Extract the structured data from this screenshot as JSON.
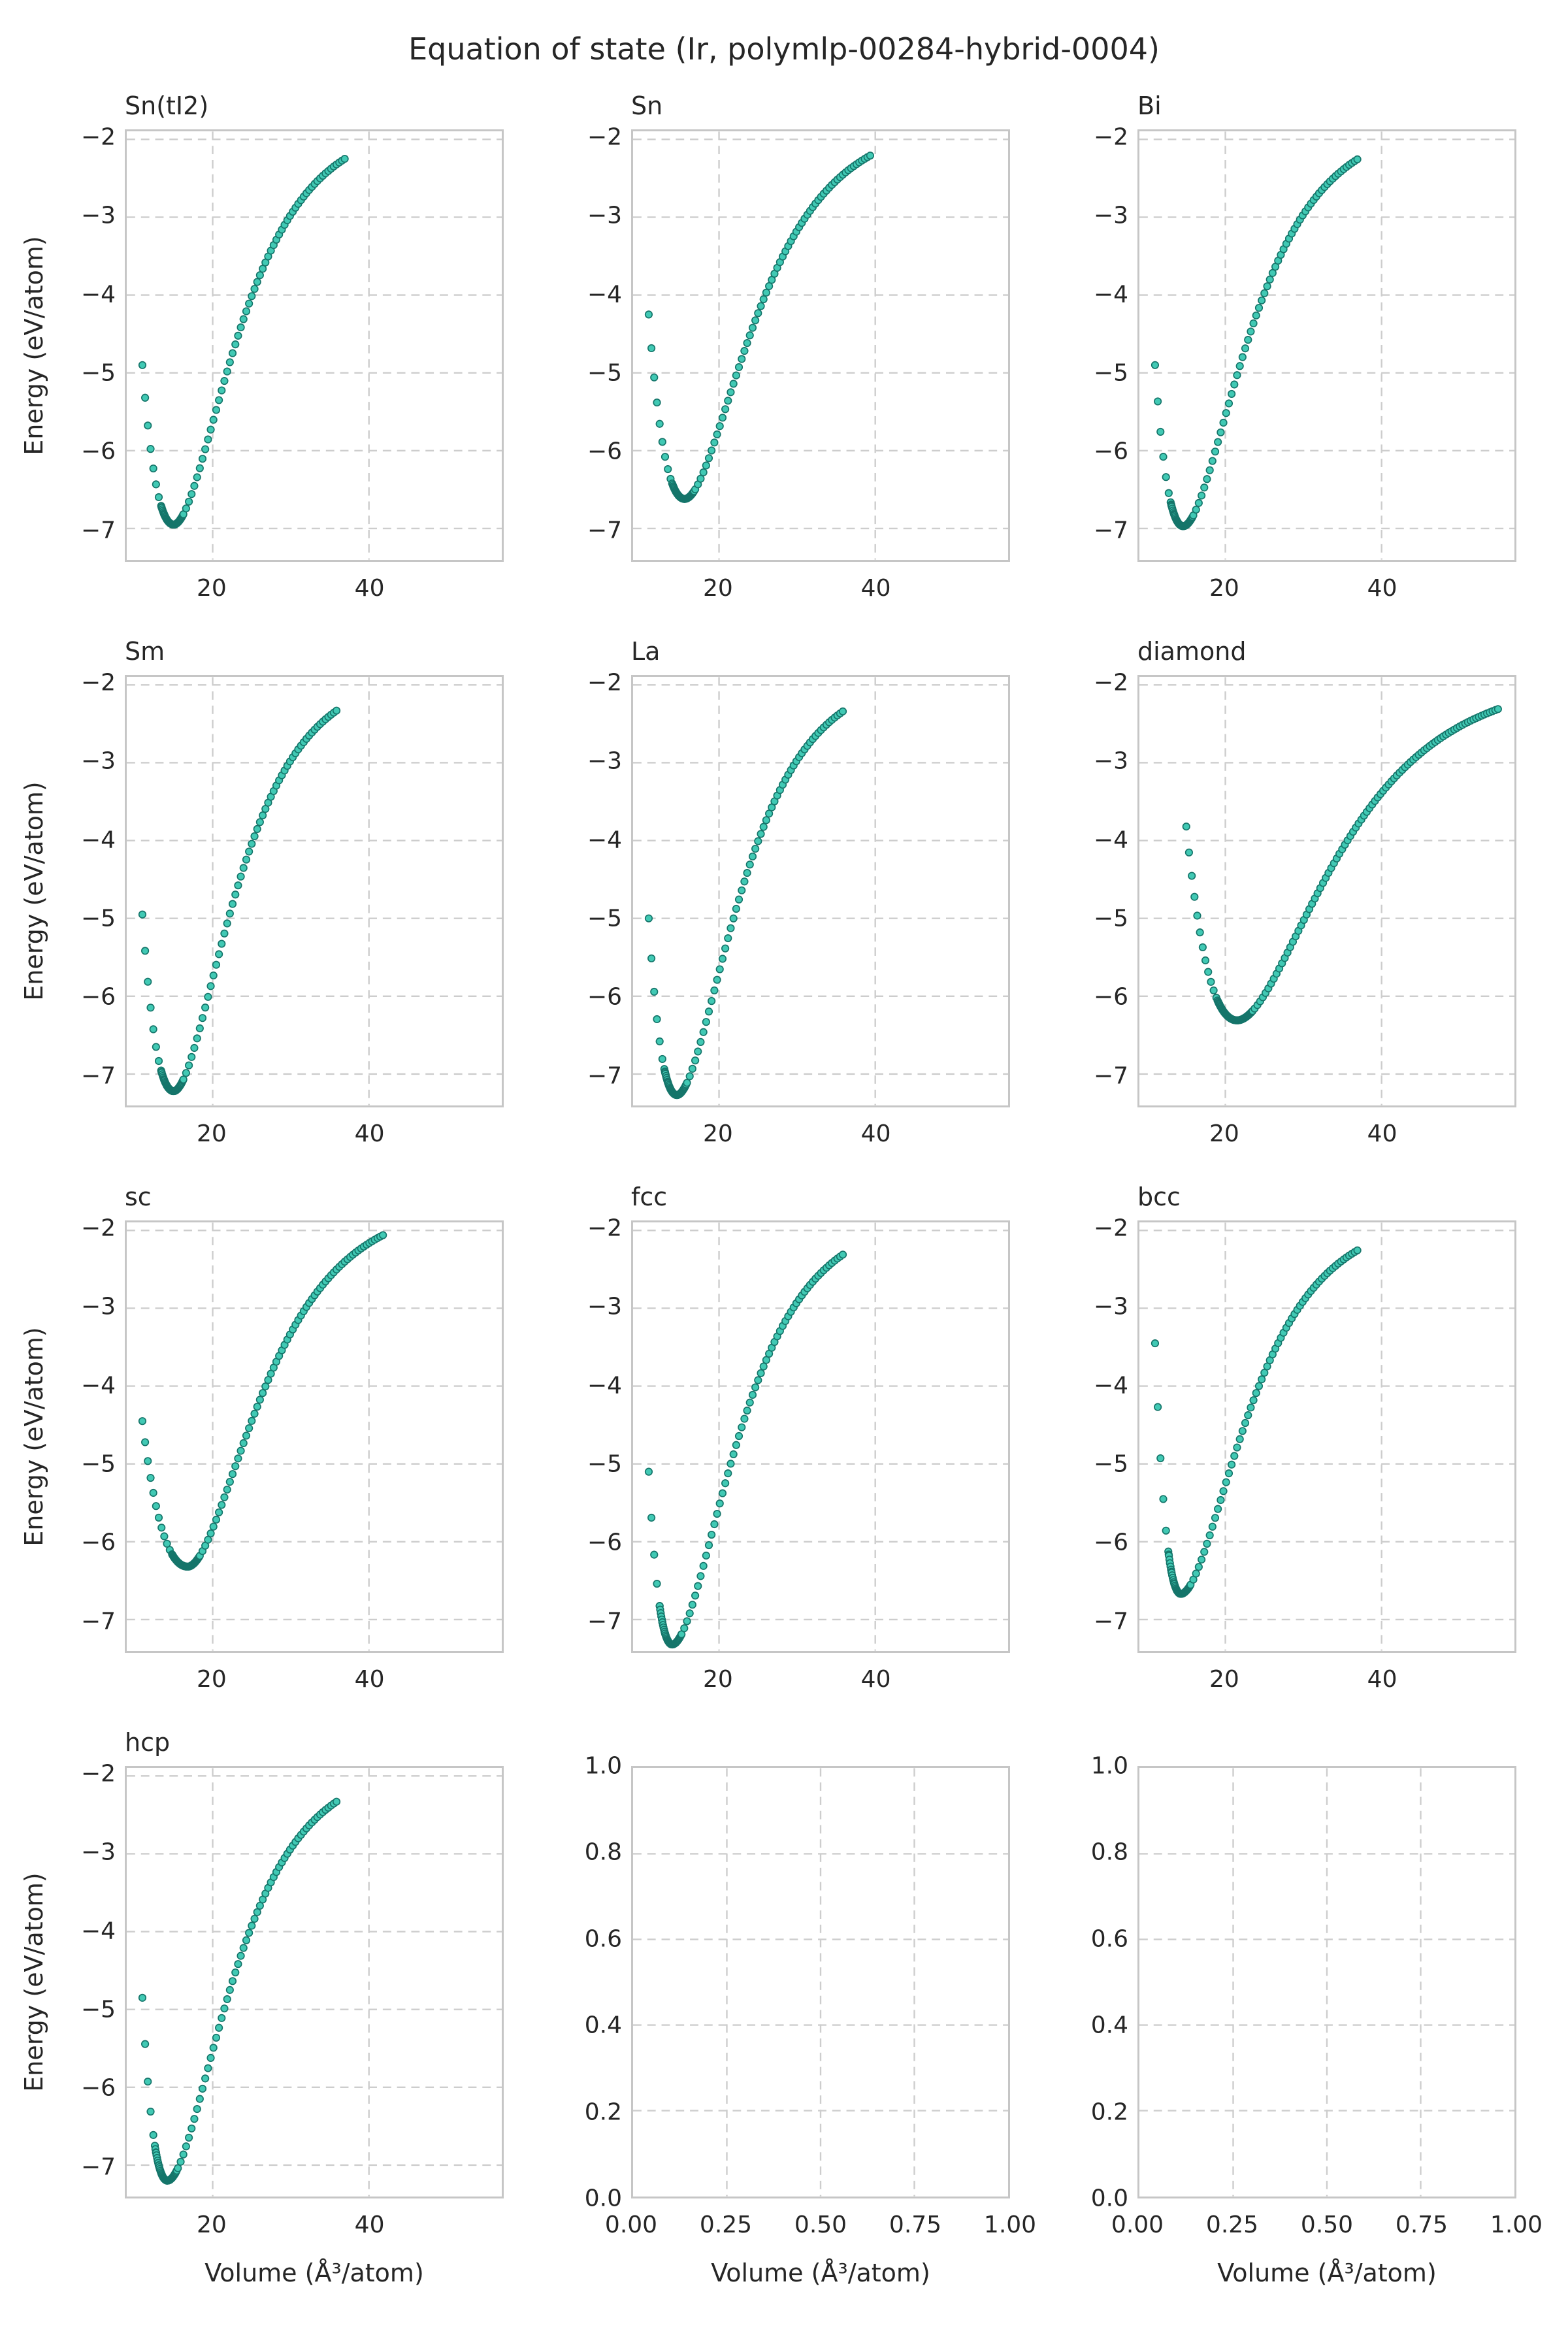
{
  "title": "Equation of state (Ir, polymlp-00284-hybrid-0004)",
  "axis_labels": {
    "x": "Volume (Å³/atom)",
    "y": "Energy (eV/atom)"
  },
  "colors": {
    "marker_fill": "#41c9b4",
    "marker_edge": "#15756a",
    "grid": "#cdcdcd",
    "spine": "#c6c6c6",
    "text": "#262626",
    "background": "#ffffff"
  },
  "sampling": {
    "coarse_step": 0.35,
    "fine_step": 0.07,
    "fine_below_min": 1.6,
    "fine_above_min": 1.2,
    "note": "points generated from asymmetric Morse EOS through the anchor points read off each panel"
  },
  "chart_data": [
    {
      "type": "scatter",
      "title": "Sn(tI2)",
      "row": 0,
      "col": 0,
      "xlim": [
        9,
        57
      ],
      "ylim": [
        -7.4,
        -1.9
      ],
      "xticks": [
        20,
        40
      ],
      "xticklabels": [
        "20",
        "40"
      ],
      "yticks": [
        -2,
        -3,
        -4,
        -5,
        -6,
        -7
      ],
      "yticklabels": [
        "−2",
        "−3",
        "−4",
        "−5",
        "−6",
        "−7"
      ],
      "show_ylabel": true,
      "show_xlabel": false,
      "grid": true,
      "eos_anchors": {
        "v_start": 11.0,
        "e_start": -4.9,
        "v_min": 15.0,
        "e_min": -6.95,
        "v_end": 36.9,
        "e_end": -2.25
      }
    },
    {
      "type": "scatter",
      "title": "Sn",
      "row": 0,
      "col": 1,
      "xlim": [
        9,
        57
      ],
      "ylim": [
        -7.4,
        -1.9
      ],
      "xticks": [
        20,
        40
      ],
      "xticklabels": [
        "20",
        "40"
      ],
      "yticks": [
        -2,
        -3,
        -4,
        -5,
        -6,
        -7
      ],
      "yticklabels": [
        "−2",
        "−3",
        "−4",
        "−5",
        "−6",
        "−7"
      ],
      "show_ylabel": false,
      "show_xlabel": false,
      "grid": true,
      "eos_anchors": {
        "v_start": 11.0,
        "e_start": -4.25,
        "v_min": 15.6,
        "e_min": -6.62,
        "v_end": 39.5,
        "e_end": -2.2
      }
    },
    {
      "type": "scatter",
      "title": "Bi",
      "row": 0,
      "col": 2,
      "xlim": [
        9,
        57
      ],
      "ylim": [
        -7.4,
        -1.9
      ],
      "xticks": [
        20,
        40
      ],
      "xticklabels": [
        "20",
        "40"
      ],
      "yticks": [
        -2,
        -3,
        -4,
        -5,
        -6,
        -7
      ],
      "yticklabels": [
        "−2",
        "−3",
        "−4",
        "−5",
        "−6",
        "−7"
      ],
      "show_ylabel": false,
      "show_xlabel": false,
      "grid": true,
      "eos_anchors": {
        "v_start": 11.0,
        "e_start": -4.9,
        "v_min": 14.6,
        "e_min": -6.97,
        "v_end": 37.0,
        "e_end": -2.25
      }
    },
    {
      "type": "scatter",
      "title": "Sm",
      "row": 1,
      "col": 0,
      "xlim": [
        9,
        57
      ],
      "ylim": [
        -7.4,
        -1.9
      ],
      "xticks": [
        20,
        40
      ],
      "xticklabels": [
        "20",
        "40"
      ],
      "yticks": [
        -2,
        -3,
        -4,
        -5,
        -6,
        -7
      ],
      "yticklabels": [
        "−2",
        "−3",
        "−4",
        "−5",
        "−6",
        "−7"
      ],
      "show_ylabel": true,
      "show_xlabel": false,
      "grid": true,
      "eos_anchors": {
        "v_start": 11.0,
        "e_start": -4.95,
        "v_min": 15.0,
        "e_min": -7.22,
        "v_end": 36.0,
        "e_end": -2.32
      }
    },
    {
      "type": "scatter",
      "title": "La",
      "row": 1,
      "col": 1,
      "xlim": [
        9,
        57
      ],
      "ylim": [
        -7.4,
        -1.9
      ],
      "xticks": [
        20,
        40
      ],
      "xticklabels": [
        "20",
        "40"
      ],
      "yticks": [
        -2,
        -3,
        -4,
        -5,
        -6,
        -7
      ],
      "yticklabels": [
        "−2",
        "−3",
        "−4",
        "−5",
        "−6",
        "−7"
      ],
      "show_ylabel": false,
      "show_xlabel": false,
      "grid": true,
      "eos_anchors": {
        "v_start": 11.0,
        "e_start": -5.0,
        "v_min": 14.6,
        "e_min": -7.27,
        "v_end": 36.0,
        "e_end": -2.33
      }
    },
    {
      "type": "scatter",
      "title": "diamond",
      "row": 1,
      "col": 2,
      "xlim": [
        9,
        57
      ],
      "ylim": [
        -7.4,
        -1.9
      ],
      "xticks": [
        20,
        40
      ],
      "xticklabels": [
        "20",
        "40"
      ],
      "yticks": [
        -2,
        -3,
        -4,
        -5,
        -6,
        -7
      ],
      "yticklabels": [
        "−2",
        "−3",
        "−4",
        "−5",
        "−6",
        "−7"
      ],
      "show_ylabel": false,
      "show_xlabel": false,
      "grid": true,
      "eos_anchors": {
        "v_start": 15.0,
        "e_start": -3.82,
        "v_min": 21.5,
        "e_min": -6.31,
        "v_end": 55.2,
        "e_end": -2.3
      },
      "fine_below_min": 2.5,
      "fine_above_min": 2.0
    },
    {
      "type": "scatter",
      "title": "sc",
      "row": 2,
      "col": 0,
      "xlim": [
        9,
        57
      ],
      "ylim": [
        -7.4,
        -1.9
      ],
      "xticks": [
        20,
        40
      ],
      "xticklabels": [
        "20",
        "40"
      ],
      "yticks": [
        -2,
        -3,
        -4,
        -5,
        -6,
        -7
      ],
      "yticklabels": [
        "−2",
        "−3",
        "−4",
        "−5",
        "−6",
        "−7"
      ],
      "show_ylabel": true,
      "show_xlabel": false,
      "grid": true,
      "eos_anchors": {
        "v_start": 11.0,
        "e_start": -4.45,
        "v_min": 16.8,
        "e_min": -6.32,
        "v_end": 42.0,
        "e_end": -2.05
      },
      "fine_below_min": 2.0,
      "fine_above_min": 1.5
    },
    {
      "type": "scatter",
      "title": "fcc",
      "row": 2,
      "col": 1,
      "xlim": [
        9,
        57
      ],
      "ylim": [
        -7.4,
        -1.9
      ],
      "xticks": [
        20,
        40
      ],
      "xticklabels": [
        "20",
        "40"
      ],
      "yticks": [
        -2,
        -3,
        -4,
        -5,
        -6,
        -7
      ],
      "yticklabels": [
        "−2",
        "−3",
        "−4",
        "−5",
        "−6",
        "−7"
      ],
      "show_ylabel": false,
      "show_xlabel": false,
      "grid": true,
      "eos_anchors": {
        "v_start": 11.0,
        "e_start": -5.1,
        "v_min": 14.0,
        "e_min": -7.32,
        "v_end": 36.0,
        "e_end": -2.3
      }
    },
    {
      "type": "scatter",
      "title": "bcc",
      "row": 2,
      "col": 2,
      "xlim": [
        9,
        57
      ],
      "ylim": [
        -7.4,
        -1.9
      ],
      "xticks": [
        20,
        40
      ],
      "xticklabels": [
        "20",
        "40"
      ],
      "yticks": [
        -2,
        -3,
        -4,
        -5,
        -6,
        -7
      ],
      "yticklabels": [
        "−2",
        "−3",
        "−4",
        "−5",
        "−6",
        "−7"
      ],
      "show_ylabel": false,
      "show_xlabel": false,
      "grid": true,
      "eos_anchors": {
        "v_start": 11.0,
        "e_start": -3.45,
        "v_min": 14.3,
        "e_min": -6.67,
        "v_end": 37.0,
        "e_end": -2.25
      }
    },
    {
      "type": "scatter",
      "title": "hcp",
      "row": 3,
      "col": 0,
      "xlim": [
        9,
        57
      ],
      "ylim": [
        -7.4,
        -1.9
      ],
      "xticks": [
        20,
        40
      ],
      "xticklabels": [
        "20",
        "40"
      ],
      "yticks": [
        -2,
        -3,
        -4,
        -5,
        -6,
        -7
      ],
      "yticklabels": [
        "−2",
        "−3",
        "−4",
        "−5",
        "−6",
        "−7"
      ],
      "show_ylabel": true,
      "show_xlabel": true,
      "grid": true,
      "eos_anchors": {
        "v_start": 11.0,
        "e_start": -4.85,
        "v_min": 14.2,
        "e_min": -7.2,
        "v_end": 36.0,
        "e_end": -2.32
      }
    },
    {
      "type": "empty",
      "title": "",
      "row": 3,
      "col": 1,
      "xlim": [
        0,
        1
      ],
      "ylim": [
        0,
        1
      ],
      "xticks": [
        0,
        0.25,
        0.5,
        0.75,
        1
      ],
      "xticklabels": [
        "0.00",
        "0.25",
        "0.50",
        "0.75",
        "1.00"
      ],
      "yticks": [
        0,
        0.2,
        0.4,
        0.6,
        0.8,
        1
      ],
      "yticklabels": [
        "0.0",
        "0.2",
        "0.4",
        "0.6",
        "0.8",
        "1.0"
      ],
      "show_ylabel": false,
      "show_xlabel": true,
      "grid": true
    },
    {
      "type": "empty",
      "title": "",
      "row": 3,
      "col": 2,
      "xlim": [
        0,
        1
      ],
      "ylim": [
        0,
        1
      ],
      "xticks": [
        0,
        0.25,
        0.5,
        0.75,
        1
      ],
      "xticklabels": [
        "0.00",
        "0.25",
        "0.50",
        "0.75",
        "1.00"
      ],
      "yticks": [
        0,
        0.2,
        0.4,
        0.6,
        0.8,
        1
      ],
      "yticklabels": [
        "0.0",
        "0.2",
        "0.4",
        "0.6",
        "0.8",
        "1.0"
      ],
      "show_ylabel": false,
      "show_xlabel": true,
      "grid": true
    }
  ]
}
